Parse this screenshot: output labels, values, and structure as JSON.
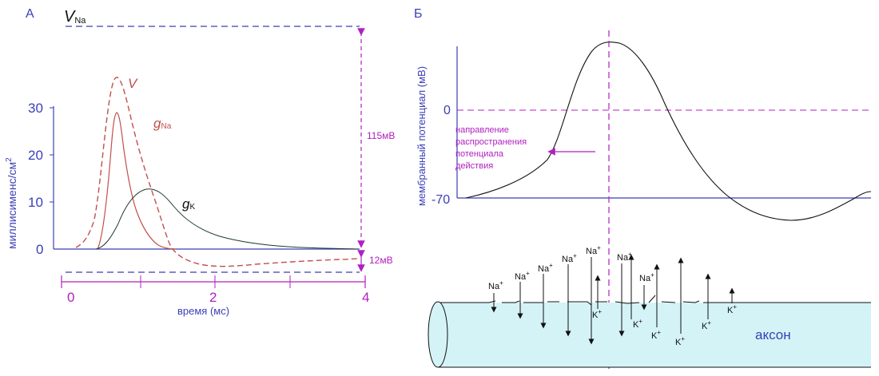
{
  "panel_a": {
    "label": "А",
    "v_na": {
      "v": "V",
      "sub": "Na"
    },
    "ylabel": "миллисименс/см",
    "ylabel_sup": "2",
    "xlabel": "время (мс)",
    "yticks": [
      "30",
      "20",
      "10",
      "0"
    ],
    "xticks": [
      "0",
      "2",
      "4"
    ],
    "curve_v": "V",
    "curve_gna": {
      "g": "g",
      "sub": "Na"
    },
    "curve_gk": {
      "g": "g",
      "sub": "K"
    },
    "ann_115": "115мВ",
    "ann_12": "12мВ",
    "colors": {
      "axis": "#3a3fb8",
      "annot": "#b020c0",
      "v": "#c0504d",
      "gna": "#c0504d",
      "gk": "#1f3b2f"
    }
  },
  "panel_b": {
    "label": "Б",
    "ylabel": "мембранный потенциал (мВ)",
    "tick_0": "0",
    "tick_m70": "-70",
    "prop_text": [
      "направление",
      "распространения",
      "потенциала",
      "действия"
    ],
    "na_labels": [
      "Na",
      "Na",
      "Na",
      "Na",
      "Na",
      "Na",
      "Na"
    ],
    "k_labels": [
      "K",
      "K",
      "K",
      "K",
      "K",
      "K"
    ],
    "plus": "+",
    "axon": "аксон",
    "colors": {
      "axon_fill": "#d4f3f7",
      "axis": "#3a3fb8",
      "annot": "#b020c0"
    }
  }
}
